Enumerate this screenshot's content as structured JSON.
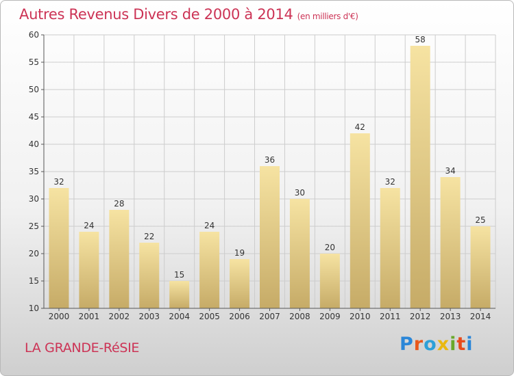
{
  "header": {
    "title": "Autres Revenus Divers de 2000 à 2014",
    "unit": "(en milliers d'€)"
  },
  "footer": {
    "place": "LA GRANDE-RéSIE",
    "brand": "Proxiti"
  },
  "colors": {
    "title": "#cc3355",
    "bar_light": "#f6e3a2",
    "bar_dark": "#c6ab67",
    "grid": "#cccccc"
  },
  "chart_data": {
    "type": "bar",
    "title": "Autres Revenus Divers de 2000 à 2014",
    "xlabel": "",
    "ylabel": "",
    "categories": [
      "2000",
      "2001",
      "2002",
      "2003",
      "2004",
      "2005",
      "2006",
      "2007",
      "2008",
      "2009",
      "2010",
      "2011",
      "2012",
      "2013",
      "2014"
    ],
    "values": [
      32,
      24,
      28,
      22,
      15,
      24,
      19,
      36,
      30,
      20,
      42,
      32,
      58,
      34,
      25
    ],
    "ylim": [
      10,
      60
    ],
    "yticks": [
      10,
      15,
      20,
      25,
      30,
      35,
      40,
      45,
      50,
      55,
      60
    ],
    "grid": true,
    "data_labels": true
  }
}
